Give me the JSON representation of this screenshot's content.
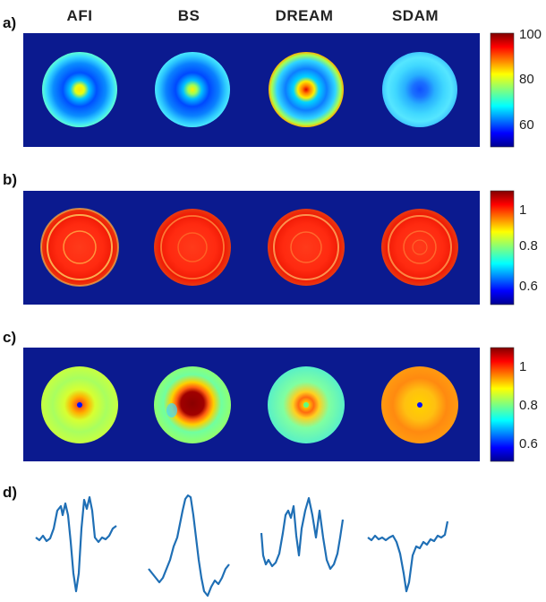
{
  "columns": [
    "AFI",
    "BS",
    "DREAM",
    "SDAM"
  ],
  "panels": [
    {
      "label": "a)",
      "colorbar_ticks": [
        "100",
        "80",
        "60"
      ]
    },
    {
      "label": "b)",
      "colorbar_ticks": [
        "1",
        "0.8",
        "0.6"
      ]
    },
    {
      "label": "c)",
      "colorbar_ticks": [
        "1",
        "0.8",
        "0.6"
      ]
    },
    {
      "label": "d)"
    }
  ],
  "colors": {
    "background_dark_blue": "#0b1a8f",
    "profile_line": "#1f6fb5",
    "colormap": "jet"
  }
}
